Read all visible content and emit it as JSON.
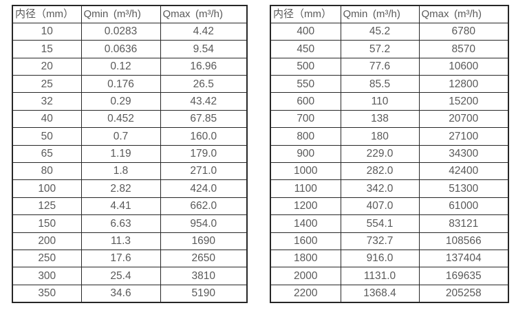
{
  "style": {
    "border_color": "#262626",
    "text_color": "#595959",
    "background": "#ffffff"
  },
  "tables": [
    {
      "name": "flow-rate-table-small-diameters",
      "headers": [
        "内径（mm）",
        "Qmin (m³/h)",
        "Qmax (m³/h)"
      ],
      "rows": [
        [
          "10",
          "0.0283",
          "4.42"
        ],
        [
          "15",
          "0.0636",
          "9.54"
        ],
        [
          "20",
          "0.12",
          "16.96"
        ],
        [
          "25",
          "0.176",
          "26.5"
        ],
        [
          "32",
          "0.29",
          "43.42"
        ],
        [
          "40",
          "0.452",
          "67.85"
        ],
        [
          "50",
          "0.7",
          "160.0"
        ],
        [
          "65",
          "1.19",
          "179.0"
        ],
        [
          "80",
          "1.8",
          "271.0"
        ],
        [
          "100",
          "2.82",
          "424.0"
        ],
        [
          "125",
          "4.41",
          "662.0"
        ],
        [
          "150",
          "6.63",
          "954.0"
        ],
        [
          "200",
          "11.3",
          "1690"
        ],
        [
          "250",
          "17.6",
          "2650"
        ],
        [
          "300",
          "25.4",
          "3810"
        ],
        [
          "350",
          "34.6",
          "5190"
        ]
      ]
    },
    {
      "name": "flow-rate-table-large-diameters",
      "headers": [
        "内径（mm）",
        "Qmin (m³/h)",
        "Qmax (m³/h)"
      ],
      "rows": [
        [
          "400",
          "45.2",
          "6780"
        ],
        [
          "450",
          "57.2",
          "8570"
        ],
        [
          "500",
          "77.6",
          "10600"
        ],
        [
          "550",
          "85.5",
          "12800"
        ],
        [
          "600",
          "110",
          "15200"
        ],
        [
          "700",
          "138",
          "20700"
        ],
        [
          "800",
          "180",
          "27100"
        ],
        [
          "900",
          "229.0",
          "34300"
        ],
        [
          "1000",
          "282.0",
          "42400"
        ],
        [
          "1100",
          "342.0",
          "51300"
        ],
        [
          "1200",
          "407.0",
          "61000"
        ],
        [
          "1400",
          "554.1",
          "83121"
        ],
        [
          "1600",
          "732.7",
          "108566"
        ],
        [
          "1800",
          "916.0",
          "137404"
        ],
        [
          "2000",
          "1131.0",
          "169635"
        ],
        [
          "2200",
          "1368.4",
          "205258"
        ]
      ]
    }
  ]
}
